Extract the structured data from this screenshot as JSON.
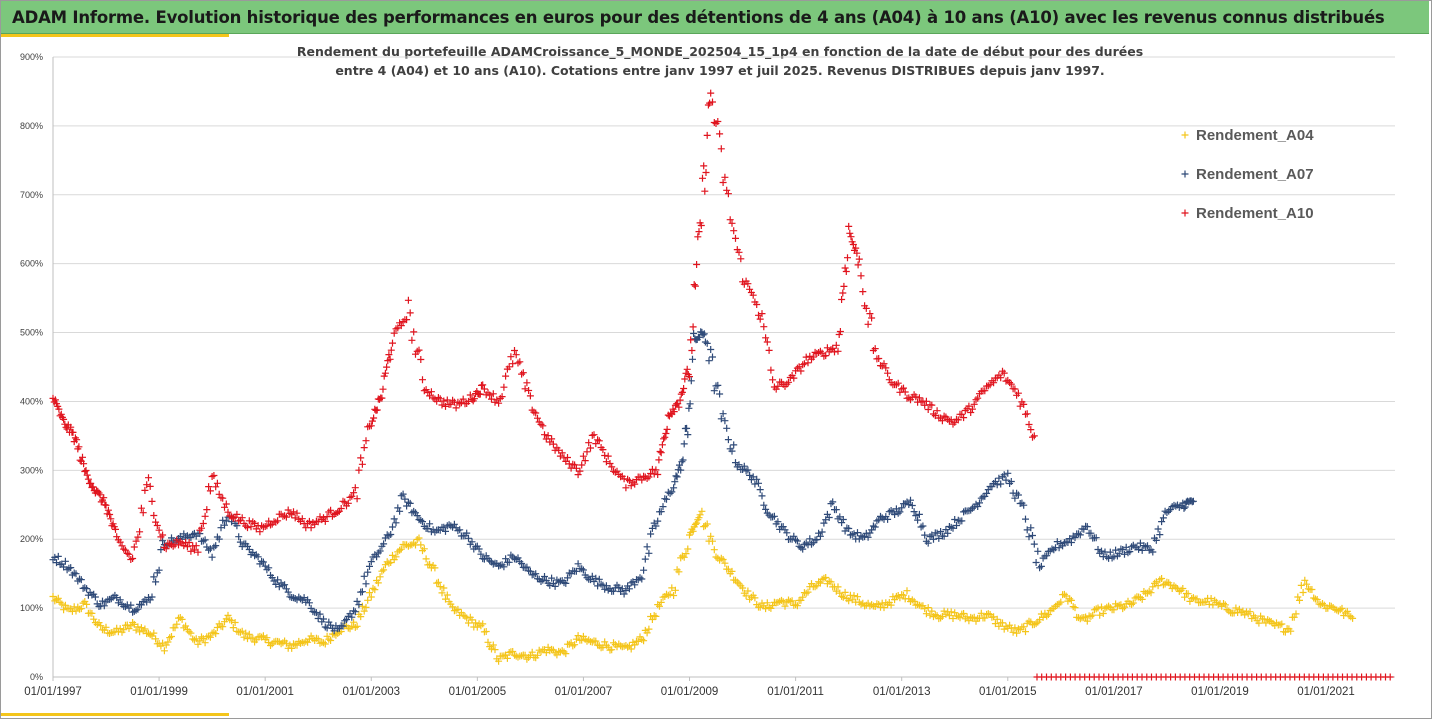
{
  "header": {
    "title": "ADAM Informe. Evolution historique des performances en euros pour des détentions de 4 ans (A04) à 10 ans (A10) avec les revenus connus distribués"
  },
  "chart_data": {
    "type": "scatter",
    "title_line1": "Rendement du portefeuille ADAMCroissance_5_MONDE_202504_15_1p4  en fonction de la date de début pour des durées",
    "title_line2": "entre 4 (A04) et 10 ans (A10). Cotations entre janv 1997 et juil 2025. Revenus DISTRIBUES depuis janv 1997.",
    "xlim": [
      1997.0,
      2022.3
    ],
    "ylim": [
      0,
      900
    ],
    "y_ticks": [
      0,
      100,
      200,
      300,
      400,
      500,
      600,
      700,
      800,
      900
    ],
    "y_tick_labels": [
      "0%",
      "100%",
      "200%",
      "300%",
      "400%",
      "500%",
      "600%",
      "700%",
      "800%",
      "900%"
    ],
    "x_ticks": [
      1997,
      1999,
      2001,
      2003,
      2005,
      2007,
      2009,
      2011,
      2013,
      2015,
      2017,
      2019,
      2021
    ],
    "x_tick_labels": [
      "01/01/1997",
      "01/01/1999",
      "01/01/2001",
      "01/01/2003",
      "01/01/2005",
      "01/01/2007",
      "01/01/2009",
      "01/01/2011",
      "01/01/2013",
      "01/01/2015",
      "01/01/2017",
      "01/01/2019",
      "01/01/2021"
    ],
    "grid": "horizontal",
    "legend_position": "right",
    "series": [
      {
        "name": "Rendement_A04",
        "color": "#f4c51b",
        "x": [
          1997.0,
          1997.3,
          1997.6,
          1997.9,
          1998.2,
          1998.5,
          1998.8,
          1999.1,
          1999.4,
          1999.7,
          2000.0,
          2000.3,
          2000.6,
          2000.9,
          2001.2,
          2001.5,
          2001.8,
          2002.1,
          2002.4,
          2002.7,
          2003.0,
          2003.3,
          2003.6,
          2003.9,
          2004.2,
          2004.5,
          2004.8,
          2005.1,
          2005.4,
          2005.7,
          2006.0,
          2006.3,
          2006.6,
          2006.9,
          2007.2,
          2007.5,
          2007.8,
          2008.1,
          2008.4,
          2008.7,
          2009.0,
          2009.2,
          2009.5,
          2009.8,
          2010.1,
          2010.4,
          2010.7,
          2011.0,
          2011.3,
          2011.6,
          2011.9,
          2012.2,
          2012.5,
          2012.8,
          2013.1,
          2013.4,
          2013.7,
          2014.0,
          2014.3,
          2014.6,
          2014.9,
          2015.2,
          2015.5,
          2015.8,
          2016.1,
          2016.4,
          2016.7,
          2017.0,
          2017.3,
          2017.6,
          2017.9,
          2018.2,
          2018.5,
          2018.8,
          2019.1,
          2019.4,
          2019.7,
          2020.0,
          2020.3,
          2020.6,
          2020.9,
          2021.2,
          2021.5
        ],
        "y": [
          115,
          95,
          105,
          70,
          65,
          75,
          65,
          45,
          85,
          50,
          60,
          85,
          60,
          55,
          50,
          45,
          55,
          50,
          70,
          75,
          120,
          165,
          190,
          195,
          150,
          100,
          85,
          70,
          25,
          35,
          30,
          40,
          35,
          55,
          50,
          45,
          40,
          55,
          100,
          130,
          205,
          240,
          180,
          150,
          120,
          100,
          110,
          105,
          130,
          140,
          120,
          110,
          100,
          110,
          120,
          100,
          90,
          90,
          85,
          90,
          75,
          65,
          80,
          95,
          120,
          80,
          95,
          100,
          105,
          120,
          140,
          130,
          110,
          110,
          100,
          95,
          85,
          75,
          70,
          140,
          105,
          100,
          85
        ]
      },
      {
        "name": "Rendement_A07",
        "color": "#2f4a78",
        "x": [
          1997.0,
          1997.3,
          1997.6,
          1997.9,
          1998.2,
          1998.5,
          1998.8,
          1999.1,
          1999.4,
          1999.7,
          2000.0,
          2000.3,
          2000.6,
          2000.9,
          2001.2,
          2001.5,
          2001.8,
          2002.1,
          2002.4,
          2002.7,
          2003.0,
          2003.3,
          2003.6,
          2003.9,
          2004.2,
          2004.5,
          2004.8,
          2005.1,
          2005.4,
          2005.7,
          2006.0,
          2006.3,
          2006.6,
          2006.9,
          2007.2,
          2007.5,
          2007.8,
          2008.1,
          2008.4,
          2008.7,
          2008.9,
          2009.1,
          2009.3,
          2009.6,
          2009.9,
          2010.2,
          2010.5,
          2010.8,
          2011.1,
          2011.4,
          2011.7,
          2012.0,
          2012.3,
          2012.6,
          2012.9,
          2013.2,
          2013.5,
          2013.8,
          2014.1,
          2014.4,
          2014.7,
          2015.0,
          2015.3,
          2015.6,
          2015.9,
          2016.2,
          2016.5,
          2016.8,
          2017.1,
          2017.4,
          2017.7,
          2018.0,
          2018.3,
          2018.5
        ],
        "y": [
          175,
          160,
          130,
          105,
          115,
          100,
          110,
          195,
          200,
          210,
          180,
          240,
          190,
          170,
          140,
          120,
          110,
          80,
          65,
          100,
          165,
          200,
          260,
          230,
          210,
          220,
          205,
          175,
          160,
          175,
          150,
          140,
          135,
          160,
          140,
          130,
          125,
          150,
          230,
          280,
          320,
          490,
          500,
          380,
          310,
          290,
          240,
          210,
          190,
          200,
          250,
          210,
          200,
          230,
          240,
          255,
          200,
          210,
          230,
          250,
          280,
          290,
          240,
          160,
          190,
          200,
          220,
          175,
          180,
          190,
          185,
          240,
          250,
          255
        ]
      },
      {
        "name": "Rendement_A10",
        "color": "#e0141e",
        "x": [
          1997.0,
          1997.2,
          1997.4,
          1997.6,
          1997.8,
          1998.0,
          1998.2,
          1998.5,
          1998.8,
          1999.1,
          1999.4,
          1999.7,
          2000.0,
          2000.3,
          2000.6,
          2000.9,
          2001.2,
          2001.5,
          2001.8,
          2002.1,
          2002.4,
          2002.7,
          2003.0,
          2003.2,
          2003.4,
          2003.7,
          2004.0,
          2004.3,
          2004.6,
          2004.9,
          2005.1,
          2005.4,
          2005.7,
          2006.0,
          2006.3,
          2006.6,
          2006.9,
          2007.2,
          2007.5,
          2007.8,
          2008.1,
          2008.4,
          2008.6,
          2008.8,
          2009.0,
          2009.2,
          2009.4,
          2009.7,
          2010.0,
          2010.3,
          2010.6,
          2010.9,
          2011.2,
          2011.5,
          2011.8,
          2012.0,
          2012.2,
          2012.5,
          2012.8,
          2013.1,
          2013.4,
          2013.7,
          2014.0,
          2014.3,
          2014.6,
          2014.9,
          2015.2,
          2015.5
        ],
        "y": [
          405,
          370,
          350,
          300,
          270,
          250,
          200,
          170,
          280,
          190,
          195,
          185,
          290,
          240,
          225,
          215,
          230,
          240,
          220,
          230,
          245,
          265,
          370,
          410,
          490,
          530,
          420,
          400,
          395,
          405,
          420,
          400,
          470,
          400,
          350,
          320,
          300,
          350,
          310,
          280,
          290,
          300,
          380,
          400,
          450,
          650,
          850,
          700,
          580,
          540,
          420,
          430,
          460,
          470,
          480,
          650,
          600,
          470,
          430,
          410,
          400,
          380,
          370,
          390,
          420,
          440,
          410,
          350
        ]
      }
    ]
  }
}
